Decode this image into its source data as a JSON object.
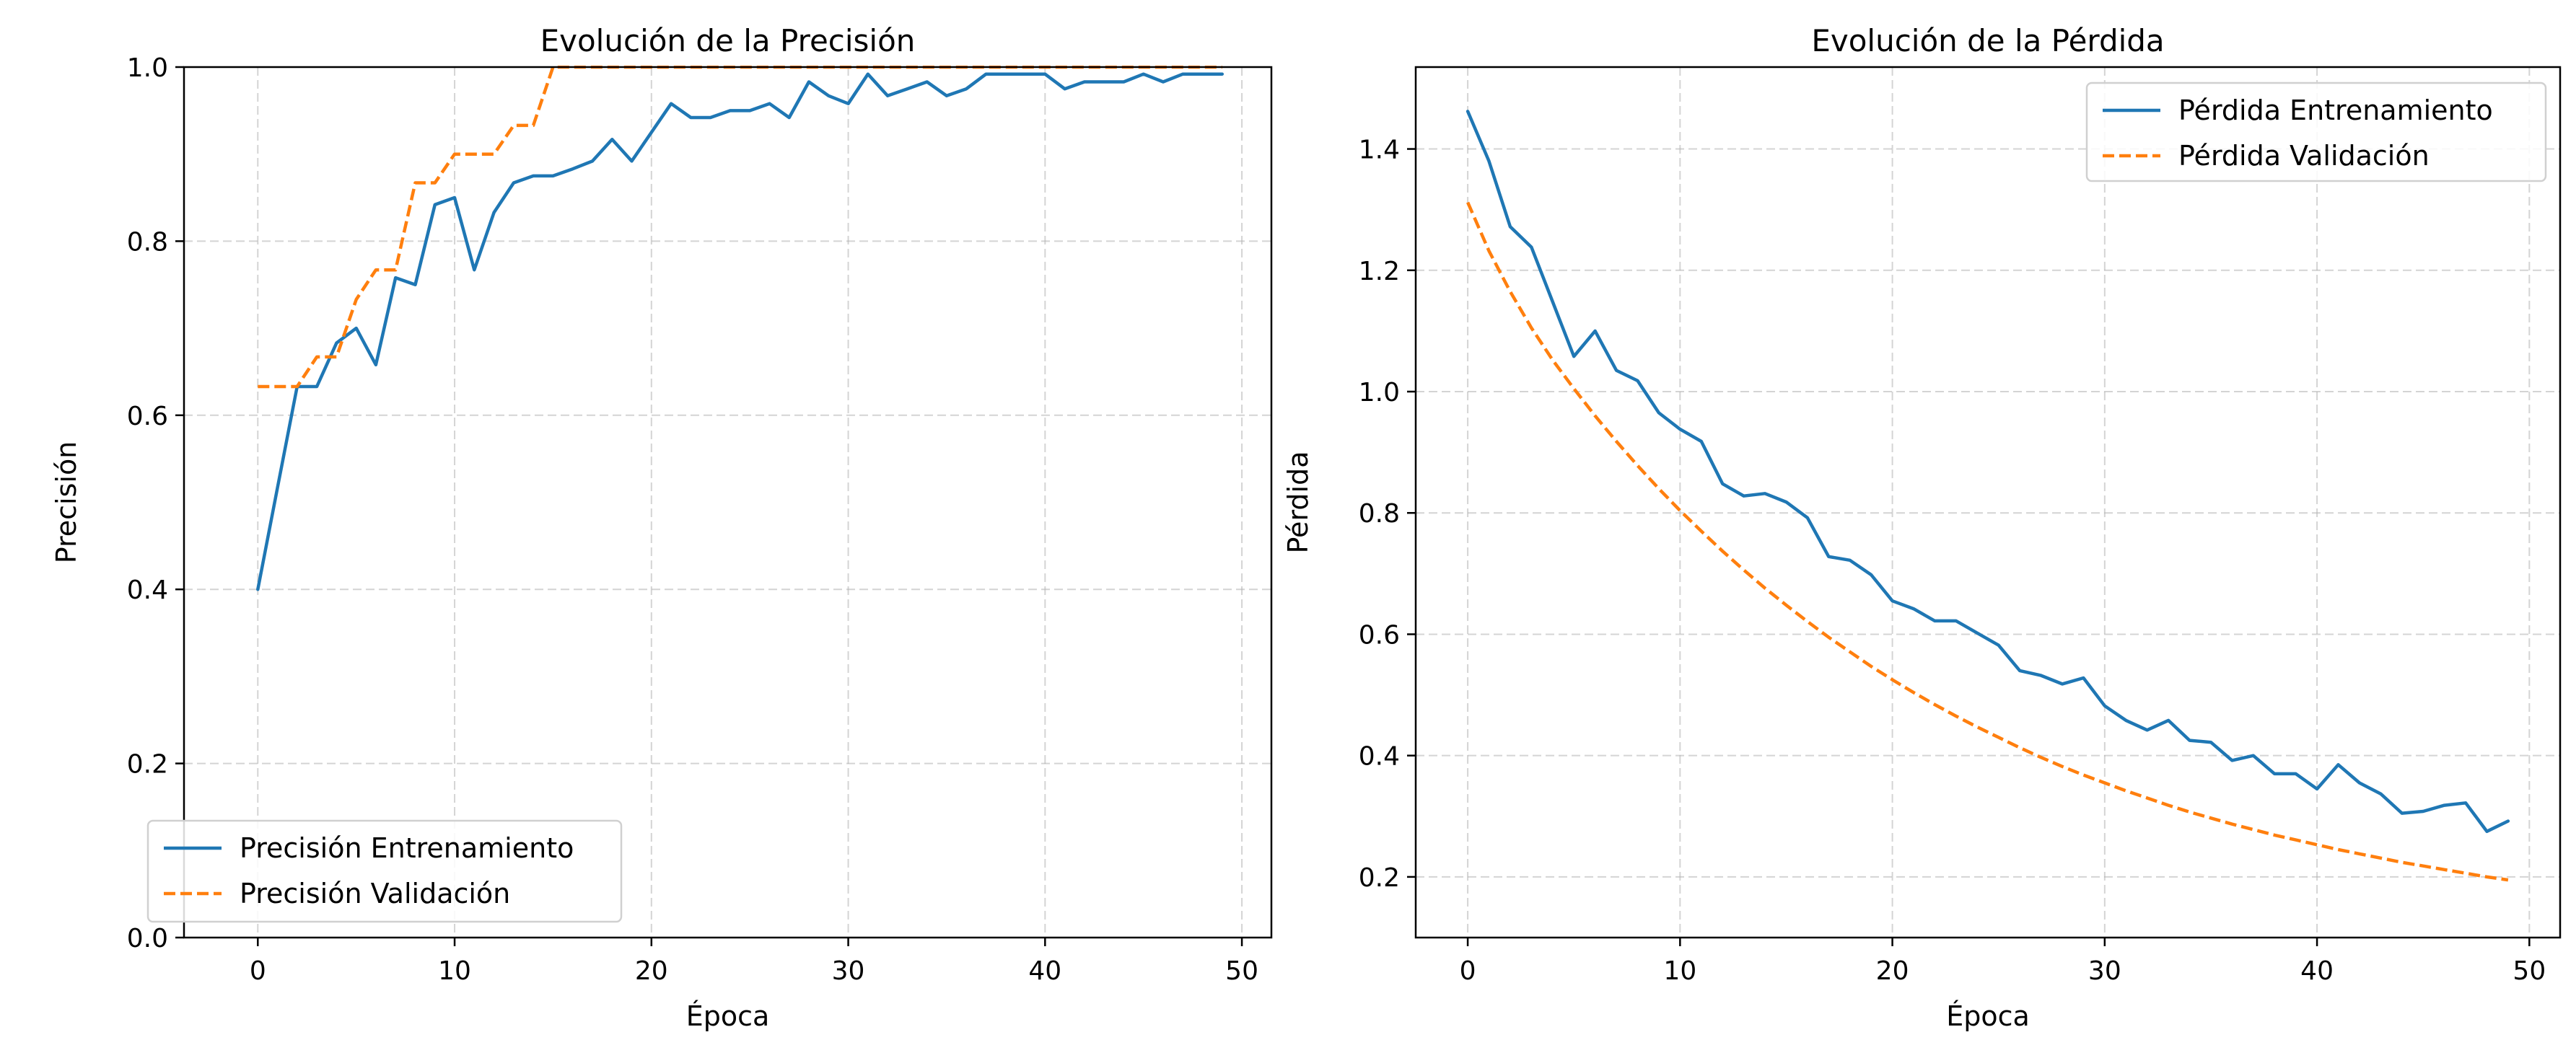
{
  "chart_data": [
    {
      "type": "line",
      "title": "Evolución de la Precisión",
      "xlabel": "Época",
      "ylabel": "Precisión",
      "xlim": [
        -3.75,
        51.5
      ],
      "ylim": [
        0,
        1
      ],
      "xticks": [
        "0",
        "10",
        "20",
        "30",
        "40",
        "50"
      ],
      "yticks": [
        "0.0",
        "0.2",
        "0.4",
        "0.6",
        "0.8",
        "1.0"
      ],
      "grid": true,
      "legend_position": "lower-left",
      "x": [
        0,
        1,
        2,
        3,
        4,
        5,
        6,
        7,
        8,
        9,
        10,
        11,
        12,
        13,
        14,
        15,
        16,
        17,
        18,
        19,
        20,
        21,
        22,
        23,
        24,
        25,
        26,
        27,
        28,
        29,
        30,
        31,
        32,
        33,
        34,
        35,
        36,
        37,
        38,
        39,
        40,
        41,
        42,
        43,
        44,
        45,
        46,
        47,
        48,
        49
      ],
      "series": [
        {
          "name": "Precisión Entrenamiento",
          "color": "#1f77b4",
          "style": "solid",
          "values": [
            0.4,
            0.517,
            0.633,
            0.633,
            0.683,
            0.7,
            0.658,
            0.758,
            0.75,
            0.842,
            0.85,
            0.767,
            0.833,
            0.867,
            0.875,
            0.875,
            0.883,
            0.892,
            0.917,
            0.892,
            0.925,
            0.958,
            0.942,
            0.942,
            0.95,
            0.95,
            0.958,
            0.942,
            0.983,
            0.967,
            0.958,
            0.992,
            0.967,
            0.975,
            0.983,
            0.967,
            0.975,
            0.992,
            0.992,
            0.992,
            0.992,
            0.975,
            0.983,
            0.983,
            0.983,
            0.992,
            0.983,
            0.992,
            0.992,
            0.992
          ]
        },
        {
          "name": "Precisión Validación",
          "color": "#ff7f0e",
          "style": "dashed",
          "values": [
            0.633,
            0.633,
            0.633,
            0.667,
            0.667,
            0.733,
            0.767,
            0.767,
            0.867,
            0.867,
            0.9,
            0.9,
            0.9,
            0.933,
            0.933,
            1.0,
            1.0,
            1.0,
            1.0,
            1.0,
            1.0,
            1.0,
            1.0,
            1.0,
            1.0,
            1.0,
            1.0,
            1.0,
            1.0,
            1.0,
            1.0,
            1.0,
            1.0,
            1.0,
            1.0,
            1.0,
            1.0,
            1.0,
            1.0,
            1.0,
            1.0,
            1.0,
            1.0,
            1.0,
            1.0,
            1.0,
            1.0,
            1.0,
            1.0,
            1.0
          ]
        }
      ]
    },
    {
      "type": "line",
      "title": "Evolución de la Pérdida",
      "xlabel": "Época",
      "ylabel": "Pérdida",
      "xlim": [
        -2.45,
        51.45
      ],
      "ylim": [
        0.1,
        1.535
      ],
      "xticks": [
        "0",
        "10",
        "20",
        "30",
        "40",
        "50"
      ],
      "yticks": [
        "0.2",
        "0.4",
        "0.6",
        "0.8",
        "1.0",
        "1.2",
        "1.4"
      ],
      "grid": true,
      "legend_position": "upper-right",
      "x": [
        0,
        1,
        2,
        3,
        4,
        5,
        6,
        7,
        8,
        9,
        10,
        11,
        12,
        13,
        14,
        15,
        16,
        17,
        18,
        19,
        20,
        21,
        22,
        23,
        24,
        25,
        26,
        27,
        28,
        29,
        30,
        31,
        32,
        33,
        34,
        35,
        36,
        37,
        38,
        39,
        40,
        41,
        42,
        43,
        44,
        45,
        46,
        47,
        48,
        49
      ],
      "series": [
        {
          "name": "Pérdida Entrenamiento",
          "color": "#1f77b4",
          "style": "solid",
          "values": [
            1.462,
            1.38,
            1.272,
            1.238,
            1.148,
            1.058,
            1.1,
            1.035,
            1.018,
            0.965,
            0.938,
            0.918,
            0.848,
            0.828,
            0.832,
            0.818,
            0.792,
            0.728,
            0.722,
            0.698,
            0.655,
            0.642,
            0.622,
            0.622,
            0.602,
            0.582,
            0.54,
            0.532,
            0.518,
            0.528,
            0.482,
            0.458,
            0.442,
            0.458,
            0.425,
            0.422,
            0.392,
            0.4,
            0.37,
            0.37,
            0.345,
            0.385,
            0.355,
            0.337,
            0.305,
            0.308,
            0.318,
            0.322,
            0.275,
            0.292
          ]
        },
        {
          "name": "Pérdida Validación",
          "color": "#ff7f0e",
          "style": "dashed",
          "values": [
            1.312,
            1.232,
            1.165,
            1.105,
            1.052,
            1.005,
            0.96,
            0.918,
            0.878,
            0.84,
            0.804,
            0.77,
            0.737,
            0.706,
            0.676,
            0.648,
            0.621,
            0.595,
            0.571,
            0.547,
            0.525,
            0.504,
            0.484,
            0.465,
            0.447,
            0.43,
            0.413,
            0.397,
            0.382,
            0.368,
            0.355,
            0.342,
            0.33,
            0.318,
            0.307,
            0.297,
            0.287,
            0.278,
            0.269,
            0.261,
            0.253,
            0.245,
            0.238,
            0.231,
            0.224,
            0.218,
            0.212,
            0.206,
            0.2,
            0.195
          ]
        }
      ]
    }
  ]
}
